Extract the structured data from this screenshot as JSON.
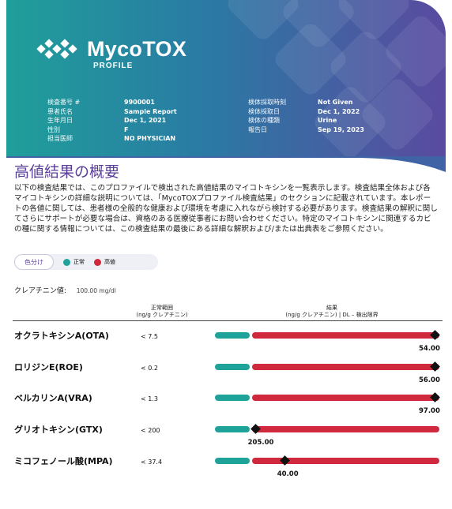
{
  "header": {
    "brand": "MycoTOX",
    "brand_sub": "PROFILE",
    "left_fields": [
      {
        "label": "検査番号 #",
        "value": "9900001"
      },
      {
        "label": "患者氏名",
        "value": "Sample Report"
      },
      {
        "label": "生年月日",
        "value": "Dec 1, 2021"
      },
      {
        "label": "性別",
        "value": "F"
      },
      {
        "label": "担当医師",
        "value": "NO PHYSICIAN"
      }
    ],
    "right_fields": [
      {
        "label": "検体採取時刻",
        "value": "Not Given"
      },
      {
        "label": "検体採取日",
        "value": "Dec 1, 2022"
      },
      {
        "label": "検体の種類",
        "value": "Urine"
      },
      {
        "label": "報告日",
        "value": "Sep 19, 2023"
      }
    ]
  },
  "section_title": "高値結果の概要",
  "description": "以下の検査結果では、このプロファイルで検出された高値結果のマイコトキシンを一覧表示します。検査結果全体および各マイコトキシンの詳細な説明については、「MycoTOXプロファイル検査結果」のセクションに記載されています。本レポートの各値に関しては、患者様の全般的な健康および環境を考慮に入れながら検討する必要があります。検査結果の解釈に関してさらにサポートが必要な場合は、資格のある医療従事者にお問い合わせください。特定のマイコトキシンに関連するカビの種に関する情報については、この検査結果の最後にある詳細な解釈および/または出典表をご参照ください。",
  "legend": {
    "key_label": "色分け",
    "normal_label": "正常",
    "high_label": "高値",
    "normal_color": "#1ea39a",
    "high_color": "#d0283c"
  },
  "creatinine": {
    "label": "クレアチニン値:",
    "value": "100.00 mg/dl"
  },
  "columns": {
    "range_header_1": "正常範囲",
    "range_header_2": "(ng/g クレアチニン)",
    "result_header_1": "結果",
    "result_header_2": "(ng/g クレアチニン) | DL – 検出限界"
  },
  "results": [
    {
      "name": "オクラトキシンA(OTA)",
      "range": "< 7.5",
      "result": "54.00",
      "level": 1.0
    },
    {
      "name": "ロリジンE(ROE)",
      "range": "< 0.2",
      "result": "56.00",
      "level": 1.0
    },
    {
      "name": "ベルカリンA(VRA)",
      "range": "< 1.3",
      "result": "97.00",
      "level": 1.0
    },
    {
      "name": "グリオトキシン(GTX)",
      "range": "< 200",
      "result": "205.00",
      "level": 0.02
    },
    {
      "name": "ミコフェノール酸(MPA)",
      "range": "< 37.4",
      "result": "40.00",
      "level": 0.18
    }
  ]
}
